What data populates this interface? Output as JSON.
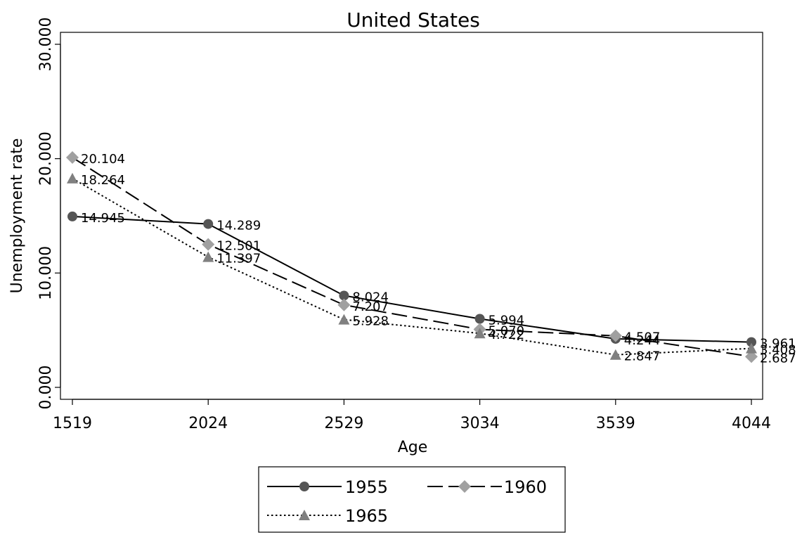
{
  "chart_data": {
    "type": "line",
    "title": "United States",
    "xlabel": "Age",
    "ylabel": "Unemployment rate",
    "categories": [
      "1519",
      "2024",
      "2529",
      "3034",
      "3539",
      "4044"
    ],
    "ylim": [
      0,
      30
    ],
    "yticks": [
      "0.000",
      "10.000",
      "20.000",
      "30.000"
    ],
    "grid": false,
    "legend_position": "bottom",
    "series": [
      {
        "name": "1955",
        "values": [
          14.945,
          14.289,
          8.024,
          5.994,
          4.244,
          3.961
        ],
        "labels": [
          "14.945",
          "14.289",
          "8.024",
          "5.994",
          "4.244",
          "3.961"
        ],
        "color": "#555555",
        "marker": "circle",
        "dash": "solid"
      },
      {
        "name": "1960",
        "values": [
          20.104,
          12.501,
          7.207,
          5.07,
          4.507,
          2.687
        ],
        "labels": [
          "20.104",
          "12.501",
          "7.207",
          "5.070",
          "4.507",
          "2.687"
        ],
        "color": "#a0a0a0",
        "marker": "diamond",
        "dash": "dashed"
      },
      {
        "name": "1965",
        "values": [
          18.264,
          11.397,
          5.928,
          4.722,
          2.847,
          3.408
        ],
        "labels": [
          "18.264",
          "11.397",
          "5.928",
          "4.722",
          "2.847",
          "3.408"
        ],
        "color": "#808080",
        "marker": "triangle",
        "dash": "dotted"
      }
    ]
  }
}
